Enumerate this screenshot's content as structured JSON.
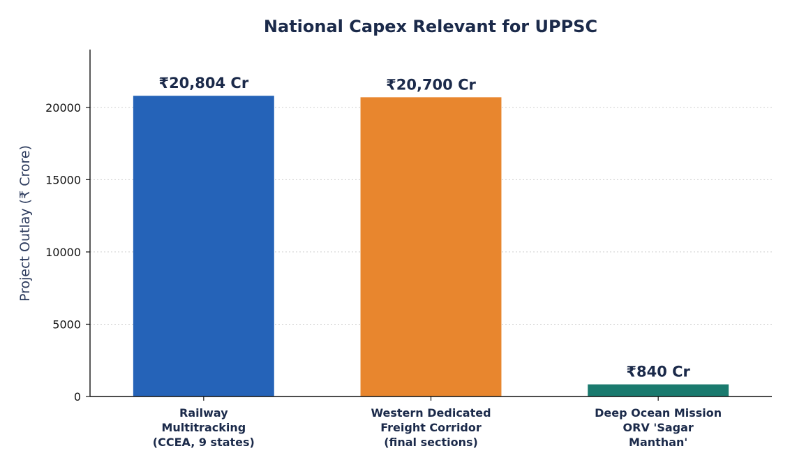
{
  "chart_data": {
    "type": "bar",
    "title": "National Capex Relevant for UPPSC",
    "xlabel": "",
    "ylabel": "Project Outlay (₹ Crore)",
    "ylim": [
      0,
      24000
    ],
    "yticks": [
      0,
      5000,
      10000,
      15000,
      20000
    ],
    "grid": "horizontal dotted",
    "categories": [
      [
        "Railway",
        "Multitracking",
        "(CCEA, 9 states)"
      ],
      [
        "Western Dedicated",
        "Freight Corridor",
        "(final sections)"
      ],
      [
        "Deep Ocean Mission",
        "ORV 'Sagar",
        "Manthan'"
      ]
    ],
    "values": [
      20804,
      20700,
      840
    ],
    "data_labels": [
      "₹20,804 Cr",
      "₹20,700 Cr",
      "₹840 Cr"
    ],
    "colors": [
      "#2563b8",
      "#e8862e",
      "#1a7a6e"
    ]
  }
}
